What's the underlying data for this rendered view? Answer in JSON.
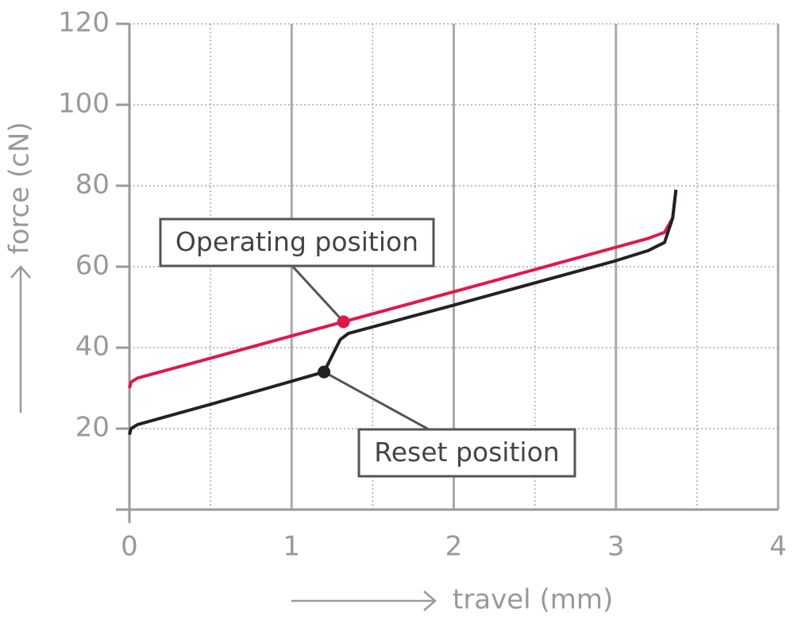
{
  "chart_data": {
    "type": "line",
    "xlabel": "travel (mm)",
    "ylabel": "force (cN)",
    "xlim": [
      0,
      4
    ],
    "ylim": [
      0,
      120
    ],
    "xticks": [
      0,
      1,
      2,
      3,
      4
    ],
    "yticks": [
      20,
      40,
      60,
      80,
      100,
      120
    ],
    "minor_xticks": [
      0.5,
      1.5,
      2.5,
      3.5
    ],
    "grid": true,
    "series": [
      {
        "name": "Operating position",
        "color": "#e0184a",
        "x": [
          0,
          0.01,
          0.05,
          0.5,
          1,
          1.32,
          2,
          3,
          3.2,
          3.3,
          3.35,
          3.37
        ],
        "values": [
          30,
          31.5,
          32.5,
          37.4,
          42.9,
          46.4,
          53.8,
          64.8,
          67,
          68.5,
          72,
          79
        ]
      },
      {
        "name": "Reset position",
        "color": "#222222",
        "x": [
          0,
          0.01,
          0.05,
          0.5,
          1,
          1.2,
          1.25,
          1.3,
          1.35,
          2,
          3,
          3.2,
          3.3,
          3.35,
          3.37
        ],
        "values": [
          18.5,
          20,
          21,
          26,
          31.7,
          34,
          38,
          42,
          43.5,
          50.5,
          61.5,
          64,
          66,
          72,
          79
        ]
      }
    ],
    "annotations": [
      {
        "text": "Operating position",
        "x": 1.32,
        "y": 46.4,
        "color": "#e0184a"
      },
      {
        "text": "Reset position",
        "x": 1.2,
        "y": 34,
        "color": "#222222"
      }
    ]
  }
}
